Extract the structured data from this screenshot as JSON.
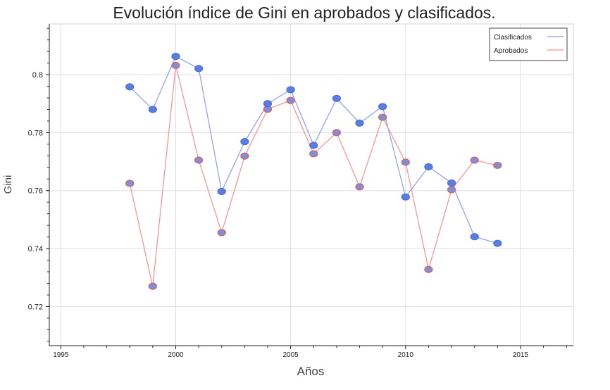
{
  "chart_data": {
    "type": "line",
    "title": "Evolución índice de Gini en aprobados y clasificados.",
    "xlabel": "Años",
    "ylabel": "Gini",
    "xlim": [
      1994.5,
      2017.3
    ],
    "ylim": [
      0.7065,
      0.8175
    ],
    "xticks": [
      1995,
      2000,
      2005,
      2010,
      2015
    ],
    "xtick_labels": [
      "1995",
      "2000",
      "2005",
      "2010",
      "2015"
    ],
    "yticks": [
      0.72,
      0.74,
      0.76,
      0.78,
      0.8
    ],
    "ytick_labels": [
      "0.72",
      "0.74",
      "0.76",
      "0.78",
      "0.8"
    ],
    "grid": true,
    "legend_position": "top-right",
    "x": [
      1998,
      1999,
      2000,
      2001,
      2002,
      2003,
      2004,
      2005,
      2006,
      2007,
      2008,
      2009,
      2010,
      2011,
      2012,
      2013,
      2014
    ],
    "series": [
      {
        "name": "Clasificados",
        "line_color": "#8c9cf0",
        "marker_color": "#5a7ee0",
        "values": [
          0.7958,
          0.788,
          0.8063,
          0.8021,
          0.7597,
          0.7769,
          0.79,
          0.7948,
          0.7756,
          0.7918,
          0.7833,
          0.789,
          0.7578,
          0.7682,
          0.7626,
          0.7441,
          0.7418
        ]
      },
      {
        "name": "Aprobados",
        "line_color": "#ff8c8c",
        "marker_color": "#7a90d8",
        "values": [
          0.7625,
          0.727,
          0.8032,
          0.7705,
          0.7455,
          0.7719,
          0.7881,
          0.7911,
          0.7727,
          0.78,
          0.7613,
          0.7853,
          0.7698,
          0.7328,
          0.7603,
          0.7705,
          0.7687
        ]
      }
    ]
  }
}
